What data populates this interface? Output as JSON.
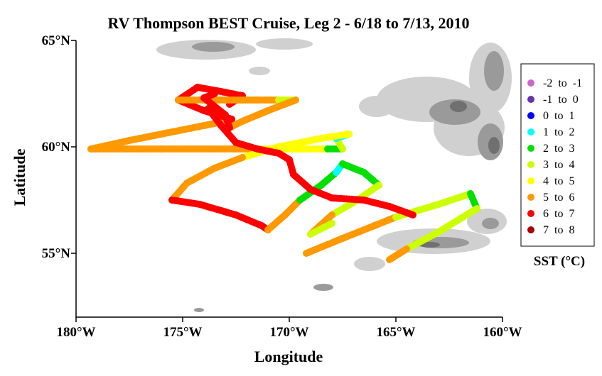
{
  "chart_data": {
    "type": "scatter",
    "title": "RV Thompson BEST Cruise, Leg 2 - 6/18 to 7/13, 2010",
    "xlabel": "Longitude",
    "ylabel": "Latitude",
    "xlim": [
      -180,
      -160
    ],
    "ylim": [
      52,
      65
    ],
    "x_ticks": [
      {
        "value": -180,
        "label": "180°W"
      },
      {
        "value": -175,
        "label": "175°W"
      },
      {
        "value": -170,
        "label": "170°W"
      },
      {
        "value": -165,
        "label": "165°W"
      },
      {
        "value": -160,
        "label": "160°W"
      }
    ],
    "y_ticks": [
      {
        "value": 65,
        "label": "65°N"
      },
      {
        "value": 60,
        "label": "60°N"
      },
      {
        "value": 55,
        "label": "55°N"
      }
    ],
    "legend_title": "SST (°C)",
    "legend_placement": "right",
    "bins": [
      {
        "label": "-2  to  -1",
        "color": "#cc66cc"
      },
      {
        "label": "-1  to  0",
        "color": "#6633aa"
      },
      {
        "label": "0  to  1",
        "color": "#0000ff"
      },
      {
        "label": "1  to  2",
        "color": "#00ffff"
      },
      {
        "label": "2  to  3",
        "color": "#00e000"
      },
      {
        "label": "3  to  4",
        "color": "#ccff00"
      },
      {
        "label": "4  to  5",
        "color": "#ffff00"
      },
      {
        "label": "5  to  6",
        "color": "#ff9900"
      },
      {
        "label": "6  to  7",
        "color": "#ff0000"
      },
      {
        "label": "7  to  8",
        "color": "#aa0000"
      }
    ],
    "series": [
      {
        "bin": 7,
        "points": [
          [
            -179.3,
            59.9
          ],
          [
            -177.5,
            60.3
          ],
          [
            -175.5,
            60.7
          ],
          [
            -173.5,
            61.1
          ],
          [
            -172.7,
            61.3
          ]
        ]
      },
      {
        "bin": 8,
        "points": [
          [
            -172.7,
            61.3
          ],
          [
            -174.0,
            61.7
          ],
          [
            -175.2,
            62.2
          ],
          [
            -174.3,
            62.8
          ],
          [
            -173.2,
            62.6
          ],
          [
            -172.2,
            62.4
          ],
          [
            -172.8,
            62.0
          ]
        ]
      },
      {
        "bin": 7,
        "points": [
          [
            -175.2,
            62.2
          ],
          [
            -173.5,
            62.2
          ],
          [
            -171.5,
            62.2
          ],
          [
            -170.5,
            62.2
          ]
        ]
      },
      {
        "bin": 5,
        "points": [
          [
            -170.5,
            62.2
          ],
          [
            -169.7,
            62.2
          ]
        ]
      },
      {
        "bin": 7,
        "points": [
          [
            -169.7,
            62.2
          ],
          [
            -171.0,
            61.7
          ],
          [
            -172.2,
            61.2
          ],
          [
            -172.8,
            60.9
          ]
        ]
      },
      {
        "bin": 8,
        "points": [
          [
            -172.8,
            60.9
          ],
          [
            -173.0,
            61.5
          ],
          [
            -174.0,
            62.3
          ],
          [
            -173.5,
            62.5
          ]
        ]
      },
      {
        "bin": 7,
        "points": [
          [
            -179.3,
            59.9
          ],
          [
            -176.0,
            59.9
          ],
          [
            -173.0,
            59.9
          ],
          [
            -171.5,
            59.9
          ]
        ]
      },
      {
        "bin": 6,
        "points": [
          [
            -171.5,
            59.9
          ],
          [
            -169.5,
            59.9
          ],
          [
            -168.2,
            59.9
          ]
        ]
      },
      {
        "bin": 4,
        "points": [
          [
            -168.2,
            59.9
          ],
          [
            -167.5,
            59.9
          ]
        ]
      },
      {
        "bin": 5,
        "points": [
          [
            -167.5,
            59.9
          ],
          [
            -167.8,
            60.4
          ]
        ]
      },
      {
        "bin": 3,
        "points": [
          [
            -167.8,
            60.4
          ],
          [
            -167.2,
            60.6
          ]
        ]
      },
      {
        "bin": 6,
        "points": [
          [
            -167.2,
            60.6
          ],
          [
            -168.5,
            60.4
          ],
          [
            -170.5,
            60.0
          ],
          [
            -172.2,
            59.5
          ]
        ]
      },
      {
        "bin": 7,
        "points": [
          [
            -172.2,
            59.5
          ],
          [
            -173.5,
            59.0
          ],
          [
            -174.8,
            58.3
          ],
          [
            -175.5,
            57.5
          ]
        ]
      },
      {
        "bin": 8,
        "points": [
          [
            -175.5,
            57.5
          ],
          [
            -174.2,
            57.3
          ],
          [
            -172.5,
            56.8
          ],
          [
            -171.3,
            56.3
          ],
          [
            -171.0,
            56.1
          ]
        ]
      },
      {
        "bin": 7,
        "points": [
          [
            -171.0,
            56.1
          ],
          [
            -170.2,
            56.8
          ],
          [
            -169.5,
            57.5
          ]
        ]
      },
      {
        "bin": 4,
        "points": [
          [
            -169.5,
            57.5
          ],
          [
            -168.5,
            58.2
          ],
          [
            -167.8,
            58.8
          ]
        ]
      },
      {
        "bin": 3,
        "points": [
          [
            -167.8,
            58.8
          ],
          [
            -167.5,
            59.2
          ]
        ]
      },
      {
        "bin": 4,
        "points": [
          [
            -167.5,
            59.2
          ],
          [
            -166.5,
            58.8
          ],
          [
            -165.8,
            58.2
          ]
        ]
      },
      {
        "bin": 5,
        "points": [
          [
            -165.8,
            58.2
          ],
          [
            -166.8,
            57.5
          ],
          [
            -168.0,
            56.8
          ]
        ]
      },
      {
        "bin": 7,
        "points": [
          [
            -168.0,
            56.8
          ],
          [
            -169.0,
            55.9
          ]
        ]
      },
      {
        "bin": 5,
        "points": [
          [
            -169.0,
            55.9
          ],
          [
            -168.0,
            56.4
          ]
        ]
      },
      {
        "bin": 7,
        "points": [
          [
            -169.2,
            55.0
          ],
          [
            -167.5,
            55.7
          ],
          [
            -166.0,
            56.3
          ],
          [
            -165.0,
            56.7
          ]
        ]
      },
      {
        "bin": 5,
        "points": [
          [
            -165.0,
            56.7
          ],
          [
            -163.0,
            57.3
          ],
          [
            -161.5,
            57.8
          ]
        ]
      },
      {
        "bin": 4,
        "points": [
          [
            -161.5,
            57.8
          ],
          [
            -161.2,
            57.1
          ]
        ]
      },
      {
        "bin": 5,
        "points": [
          [
            -161.2,
            57.1
          ],
          [
            -163.0,
            56.0
          ],
          [
            -164.5,
            55.2
          ]
        ]
      },
      {
        "bin": 7,
        "points": [
          [
            -164.5,
            55.2
          ],
          [
            -165.3,
            54.7
          ]
        ]
      },
      {
        "bin": 8,
        "points": [
          [
            -173.8,
            61.8
          ],
          [
            -173.2,
            61.0
          ],
          [
            -172.5,
            60.2
          ],
          [
            -171.5,
            59.9
          ],
          [
            -170.5,
            59.7
          ],
          [
            -170.0,
            59.4
          ],
          [
            -169.8,
            58.7
          ],
          [
            -169.0,
            58.0
          ],
          [
            -168.0,
            57.6
          ],
          [
            -166.5,
            57.5
          ],
          [
            -165.3,
            57.2
          ],
          [
            -164.2,
            56.8
          ]
        ]
      }
    ]
  }
}
